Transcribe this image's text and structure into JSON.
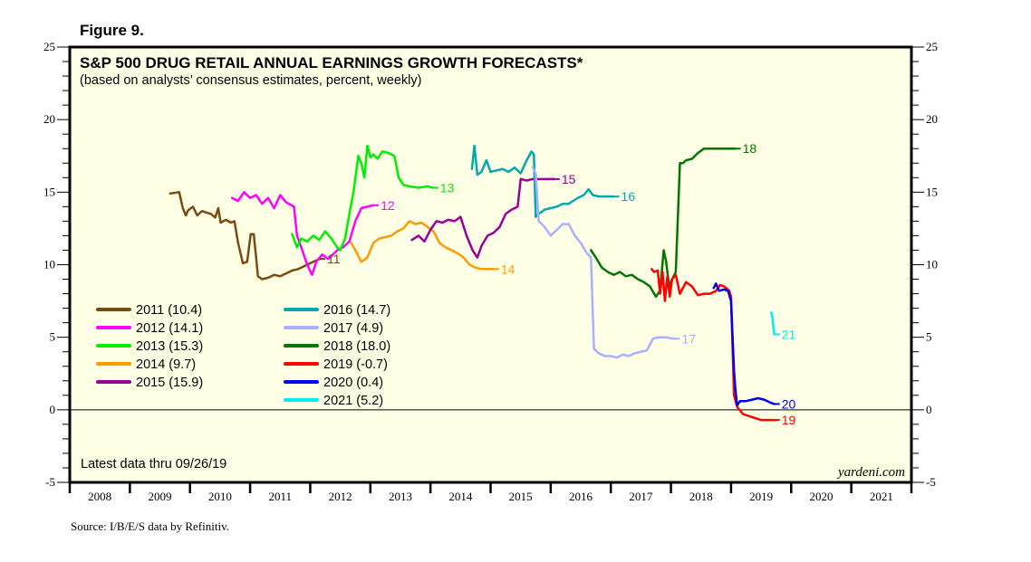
{
  "figure_label": "Figure 9.",
  "source_note": "Source: I/B/E/S data by Refinitiv.",
  "watermark": "yardeni.com",
  "latest_note": "Latest data thru 09/26/19",
  "chart_data": {
    "type": "line",
    "title": "S&P 500 DRUG RETAIL ANNUAL EARNINGS GROWTH FORECASTS*",
    "subtitle": "(based on analysts’ consensus estimates, percent, weekly)",
    "xlabel": "",
    "ylabel": "",
    "xlim": [
      2008,
      2022
    ],
    "ylim": [
      -5,
      25
    ],
    "x_tick_labels": [
      "2008",
      "2009",
      "2010",
      "2011",
      "2012",
      "2013",
      "2014",
      "2015",
      "2016",
      "2017",
      "2018",
      "2019",
      "2020",
      "2021"
    ],
    "y_ticks": [
      25,
      20,
      15,
      10,
      5,
      0,
      -5
    ],
    "y_tick_labels": [
      "25",
      "20",
      "15",
      "10",
      "5",
      "0",
      "-5"
    ],
    "y_minor_step": 1,
    "grid": false,
    "zero_line": true,
    "legend_position": "bottom-left",
    "background": "#ffffe6",
    "series": [
      {
        "name": "2011 (10.4)",
        "end_label": "11",
        "color": "#7b4a12",
        "x": [
          2009.67,
          2009.82,
          2009.88,
          2009.93,
          2009.97,
          2010.05,
          2010.12,
          2010.2,
          2010.27,
          2010.35,
          2010.42,
          2010.47,
          2010.51,
          2010.6,
          2010.68,
          2010.74,
          2010.8,
          2010.88,
          2010.95,
          2011.01,
          2011.06,
          2011.1,
          2011.13,
          2011.2,
          2011.3,
          2011.4,
          2011.5,
          2011.6,
          2011.7,
          2011.8,
          2011.9,
          2012.0,
          2012.1,
          2012.16
        ],
        "y": [
          14.9,
          15.0,
          13.9,
          13.4,
          13.75,
          14.0,
          13.4,
          13.7,
          13.6,
          13.5,
          13.25,
          13.9,
          12.9,
          13.1,
          12.9,
          13.0,
          11.5,
          10.1,
          10.2,
          12.1,
          12.1,
          10.5,
          9.2,
          9.0,
          9.1,
          9.3,
          9.2,
          9.4,
          9.6,
          9.7,
          9.9,
          10.1,
          10.3,
          10.4
        ]
      },
      {
        "name": "2012 (14.1)",
        "end_label": "12",
        "color": "#ff00ff",
        "x": [
          2010.7,
          2010.8,
          2010.9,
          2011.0,
          2011.1,
          2011.2,
          2011.3,
          2011.4,
          2011.5,
          2011.6,
          2011.73,
          2011.78,
          2011.85,
          2011.95,
          2012.03,
          2012.1,
          2012.2,
          2012.3,
          2012.45,
          2012.55,
          2012.65,
          2012.75,
          2012.85,
          2012.95,
          2013.05
        ],
        "y": [
          14.6,
          14.4,
          15.0,
          14.6,
          14.8,
          14.2,
          14.6,
          13.9,
          14.8,
          14.3,
          14.0,
          12.0,
          11.2,
          10.0,
          9.3,
          10.2,
          10.7,
          10.4,
          11.0,
          11.2,
          11.6,
          13.0,
          13.9,
          14.0,
          14.1
        ]
      },
      {
        "name": "2013 (15.3)",
        "end_label": "13",
        "color": "#00ee00",
        "x": [
          2011.7,
          2011.78,
          2011.85,
          2011.95,
          2012.05,
          2012.15,
          2012.25,
          2012.35,
          2012.45,
          2012.5,
          2012.58,
          2012.65,
          2012.72,
          2012.8,
          2012.85,
          2012.9,
          2012.95,
          2013.0,
          2013.05,
          2013.12,
          2013.2,
          2013.3,
          2013.4,
          2013.47,
          2013.55,
          2013.65,
          2013.8,
          2013.95,
          2014.04
        ],
        "y": [
          12.1,
          11.2,
          11.8,
          11.6,
          12.0,
          11.7,
          12.3,
          11.8,
          11.2,
          11.0,
          11.8,
          13.5,
          15.0,
          17.5,
          17.0,
          16.0,
          18.2,
          17.4,
          17.6,
          17.3,
          17.8,
          17.7,
          17.5,
          16.0,
          15.5,
          15.4,
          15.3,
          15.4,
          15.3
        ]
      },
      {
        "name": "2014 (9.7)",
        "end_label": "14",
        "color": "#ff9a00",
        "x": [
          2012.68,
          2012.75,
          2012.85,
          2012.95,
          2013.05,
          2013.15,
          2013.25,
          2013.35,
          2013.45,
          2013.55,
          2013.65,
          2013.75,
          2013.85,
          2013.95,
          2014.05,
          2014.15,
          2014.25,
          2014.35,
          2014.45,
          2014.55,
          2014.65,
          2014.75,
          2014.85,
          2014.95,
          2015.05
        ],
        "y": [
          11.5,
          11.0,
          10.2,
          10.5,
          11.5,
          11.8,
          11.9,
          12.0,
          12.3,
          12.5,
          13.0,
          12.8,
          12.9,
          12.6,
          12.3,
          11.5,
          11.2,
          11.0,
          10.8,
          10.5,
          10.0,
          9.8,
          9.7,
          9.7,
          9.7
        ]
      },
      {
        "name": "2015 (15.9)",
        "end_label": "15",
        "color": "#990099",
        "x": [
          2013.69,
          2013.8,
          2013.9,
          2014.0,
          2014.1,
          2014.2,
          2014.3,
          2014.4,
          2014.5,
          2014.6,
          2014.7,
          2014.78,
          2014.85,
          2014.95,
          2015.05,
          2015.15,
          2015.25,
          2015.35,
          2015.45,
          2015.5,
          2015.6,
          2015.7,
          2015.8,
          2015.9,
          2016.06
        ],
        "y": [
          11.7,
          12.0,
          11.6,
          12.4,
          13.0,
          12.9,
          13.1,
          13.0,
          13.3,
          12.0,
          11.0,
          10.5,
          11.3,
          12.0,
          12.2,
          12.6,
          13.5,
          13.8,
          14.0,
          15.9,
          15.8,
          15.9,
          15.9,
          15.9,
          15.9
        ]
      },
      {
        "name": "2016 (14.7)",
        "end_label": "16",
        "color": "#00aaaa",
        "x": [
          2014.69,
          2014.73,
          2014.78,
          2014.85,
          2014.93,
          2015.0,
          2015.1,
          2015.2,
          2015.3,
          2015.4,
          2015.5,
          2015.6,
          2015.68,
          2015.72,
          2015.75,
          2015.8,
          2015.9,
          2016.0,
          2016.1,
          2016.2,
          2016.3,
          2016.45,
          2016.55,
          2016.63,
          2016.7,
          2016.8,
          2016.95,
          2017.05
        ],
        "y": [
          16.6,
          18.2,
          16.2,
          16.4,
          17.2,
          16.4,
          16.5,
          16.6,
          16.4,
          16.7,
          16.3,
          17.2,
          17.8,
          17.6,
          13.3,
          13.5,
          13.8,
          13.9,
          14.0,
          14.2,
          14.2,
          14.6,
          14.8,
          15.2,
          14.8,
          14.7,
          14.7,
          14.7
        ]
      },
      {
        "name": "2017 (4.9)",
        "end_label": "17",
        "color": "#aab0ff",
        "x": [
          2015.7,
          2015.75,
          2015.8,
          2015.9,
          2016.0,
          2016.1,
          2016.2,
          2016.3,
          2016.4,
          2016.5,
          2016.6,
          2016.67,
          2016.72,
          2016.8,
          2016.9,
          2017.0,
          2017.1,
          2017.2,
          2017.3,
          2017.4,
          2017.5,
          2017.6,
          2017.7,
          2017.8,
          2017.9,
          2018.06
        ],
        "y": [
          16.7,
          16.3,
          13.0,
          12.6,
          12.0,
          12.4,
          12.8,
          12.8,
          12.0,
          11.5,
          10.8,
          10.5,
          4.2,
          3.9,
          3.7,
          3.7,
          3.6,
          3.8,
          3.7,
          3.9,
          4.0,
          4.1,
          4.9,
          5.0,
          5.0,
          4.9
        ]
      },
      {
        "name": "2018 (18.0)",
        "end_label": "18",
        "color": "#007700",
        "x": [
          2016.67,
          2016.75,
          2016.85,
          2016.95,
          2017.05,
          2017.15,
          2017.25,
          2017.35,
          2017.45,
          2017.55,
          2017.65,
          2017.75,
          2017.82,
          2017.88,
          2017.92,
          2017.97,
          2018.02,
          2018.08,
          2018.15,
          2018.2,
          2018.25,
          2018.35,
          2018.45,
          2018.55,
          2018.65,
          2018.8,
          2018.95,
          2019.07
        ],
        "y": [
          11.0,
          10.5,
          9.8,
          9.5,
          9.3,
          9.5,
          9.2,
          9.3,
          9.0,
          8.8,
          8.5,
          7.8,
          8.2,
          11.0,
          10.2,
          8.5,
          9.0,
          9.5,
          17.0,
          17.0,
          17.2,
          17.3,
          17.7,
          18.0,
          18.0,
          18.0,
          18.0,
          18.0
        ]
      },
      {
        "name": "2019 (-0.7)",
        "end_label": "19",
        "color": "#ff0000",
        "x": [
          2017.68,
          2017.72,
          2017.78,
          2017.82,
          2017.86,
          2017.9,
          2017.94,
          2017.98,
          2018.02,
          2018.08,
          2018.15,
          2018.25,
          2018.35,
          2018.45,
          2018.55,
          2018.65,
          2018.75,
          2018.82,
          2018.88,
          2018.92,
          2018.97,
          2019.0,
          2019.05,
          2019.1,
          2019.2,
          2019.35,
          2019.5,
          2019.62,
          2019.72
        ],
        "y": [
          9.7,
          9.5,
          9.6,
          8.0,
          9.5,
          7.5,
          9.2,
          7.8,
          9.0,
          9.3,
          8.0,
          8.8,
          8.5,
          7.9,
          8.0,
          8.0,
          8.2,
          8.6,
          8.5,
          8.4,
          8.2,
          7.8,
          1.0,
          0.2,
          -0.3,
          -0.5,
          -0.7,
          -0.7,
          -0.7
        ]
      },
      {
        "name": "2020 (0.4)",
        "end_label": "20",
        "color": "#0000ee",
        "x": [
          2018.71,
          2018.75,
          2018.8,
          2018.88,
          2018.95,
          2019.0,
          2019.05,
          2019.07,
          2019.1,
          2019.15,
          2019.25,
          2019.35,
          2019.45,
          2019.55,
          2019.65,
          2019.72
        ],
        "y": [
          8.4,
          8.7,
          8.2,
          8.3,
          8.2,
          7.5,
          2.7,
          1.5,
          0.3,
          0.6,
          0.6,
          0.7,
          0.8,
          0.7,
          0.5,
          0.4
        ]
      },
      {
        "name": "2021 (5.2)",
        "end_label": "21",
        "color": "#00eeee",
        "x": [
          2019.67,
          2019.69,
          2019.7,
          2019.72
        ],
        "y": [
          6.7,
          6.3,
          5.8,
          5.2
        ]
      }
    ]
  }
}
